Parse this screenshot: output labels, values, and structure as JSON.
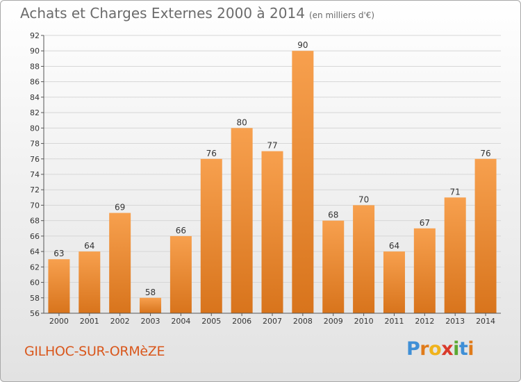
{
  "title": {
    "main": "Achats et Charges Externes 2000 à 2014",
    "unit": "(en milliers d'€)"
  },
  "commune": "GILHOC-SUR-ORMèZE",
  "logo": {
    "letters": [
      {
        "char": "P",
        "color": "#3f8fd6"
      },
      {
        "char": "r",
        "color": "#e07b1a"
      },
      {
        "char": "o",
        "color": "#f0b31c"
      },
      {
        "char": "x",
        "color": "#d93a2b"
      },
      {
        "char": "i",
        "color": "#5aa832"
      },
      {
        "char": "t",
        "color": "#3f8fd6"
      },
      {
        "char": "i",
        "color": "#e07b1a"
      }
    ]
  },
  "colors": {
    "bar_top": "#f7a04e",
    "bar_bottom": "#d8741c",
    "grid": "#d6d6d6",
    "axis": "#555555"
  },
  "chart_data": {
    "type": "bar",
    "title": "Achats et Charges Externes 2000 à 2014",
    "subtitle": "(en milliers d'€)",
    "categories": [
      "2000",
      "2001",
      "2002",
      "2003",
      "2004",
      "2005",
      "2006",
      "2007",
      "2008",
      "2009",
      "2010",
      "2011",
      "2012",
      "2013",
      "2014"
    ],
    "values": [
      63,
      64,
      69,
      58,
      66,
      76,
      80,
      77,
      90,
      68,
      70,
      64,
      67,
      71,
      76
    ],
    "xlabel": "",
    "ylabel": "",
    "ylim": [
      56,
      92
    ],
    "yticks": [
      56,
      58,
      60,
      62,
      64,
      66,
      68,
      70,
      72,
      74,
      76,
      78,
      80,
      82,
      84,
      86,
      88,
      90,
      92
    ],
    "grid": true,
    "legend": "none"
  }
}
